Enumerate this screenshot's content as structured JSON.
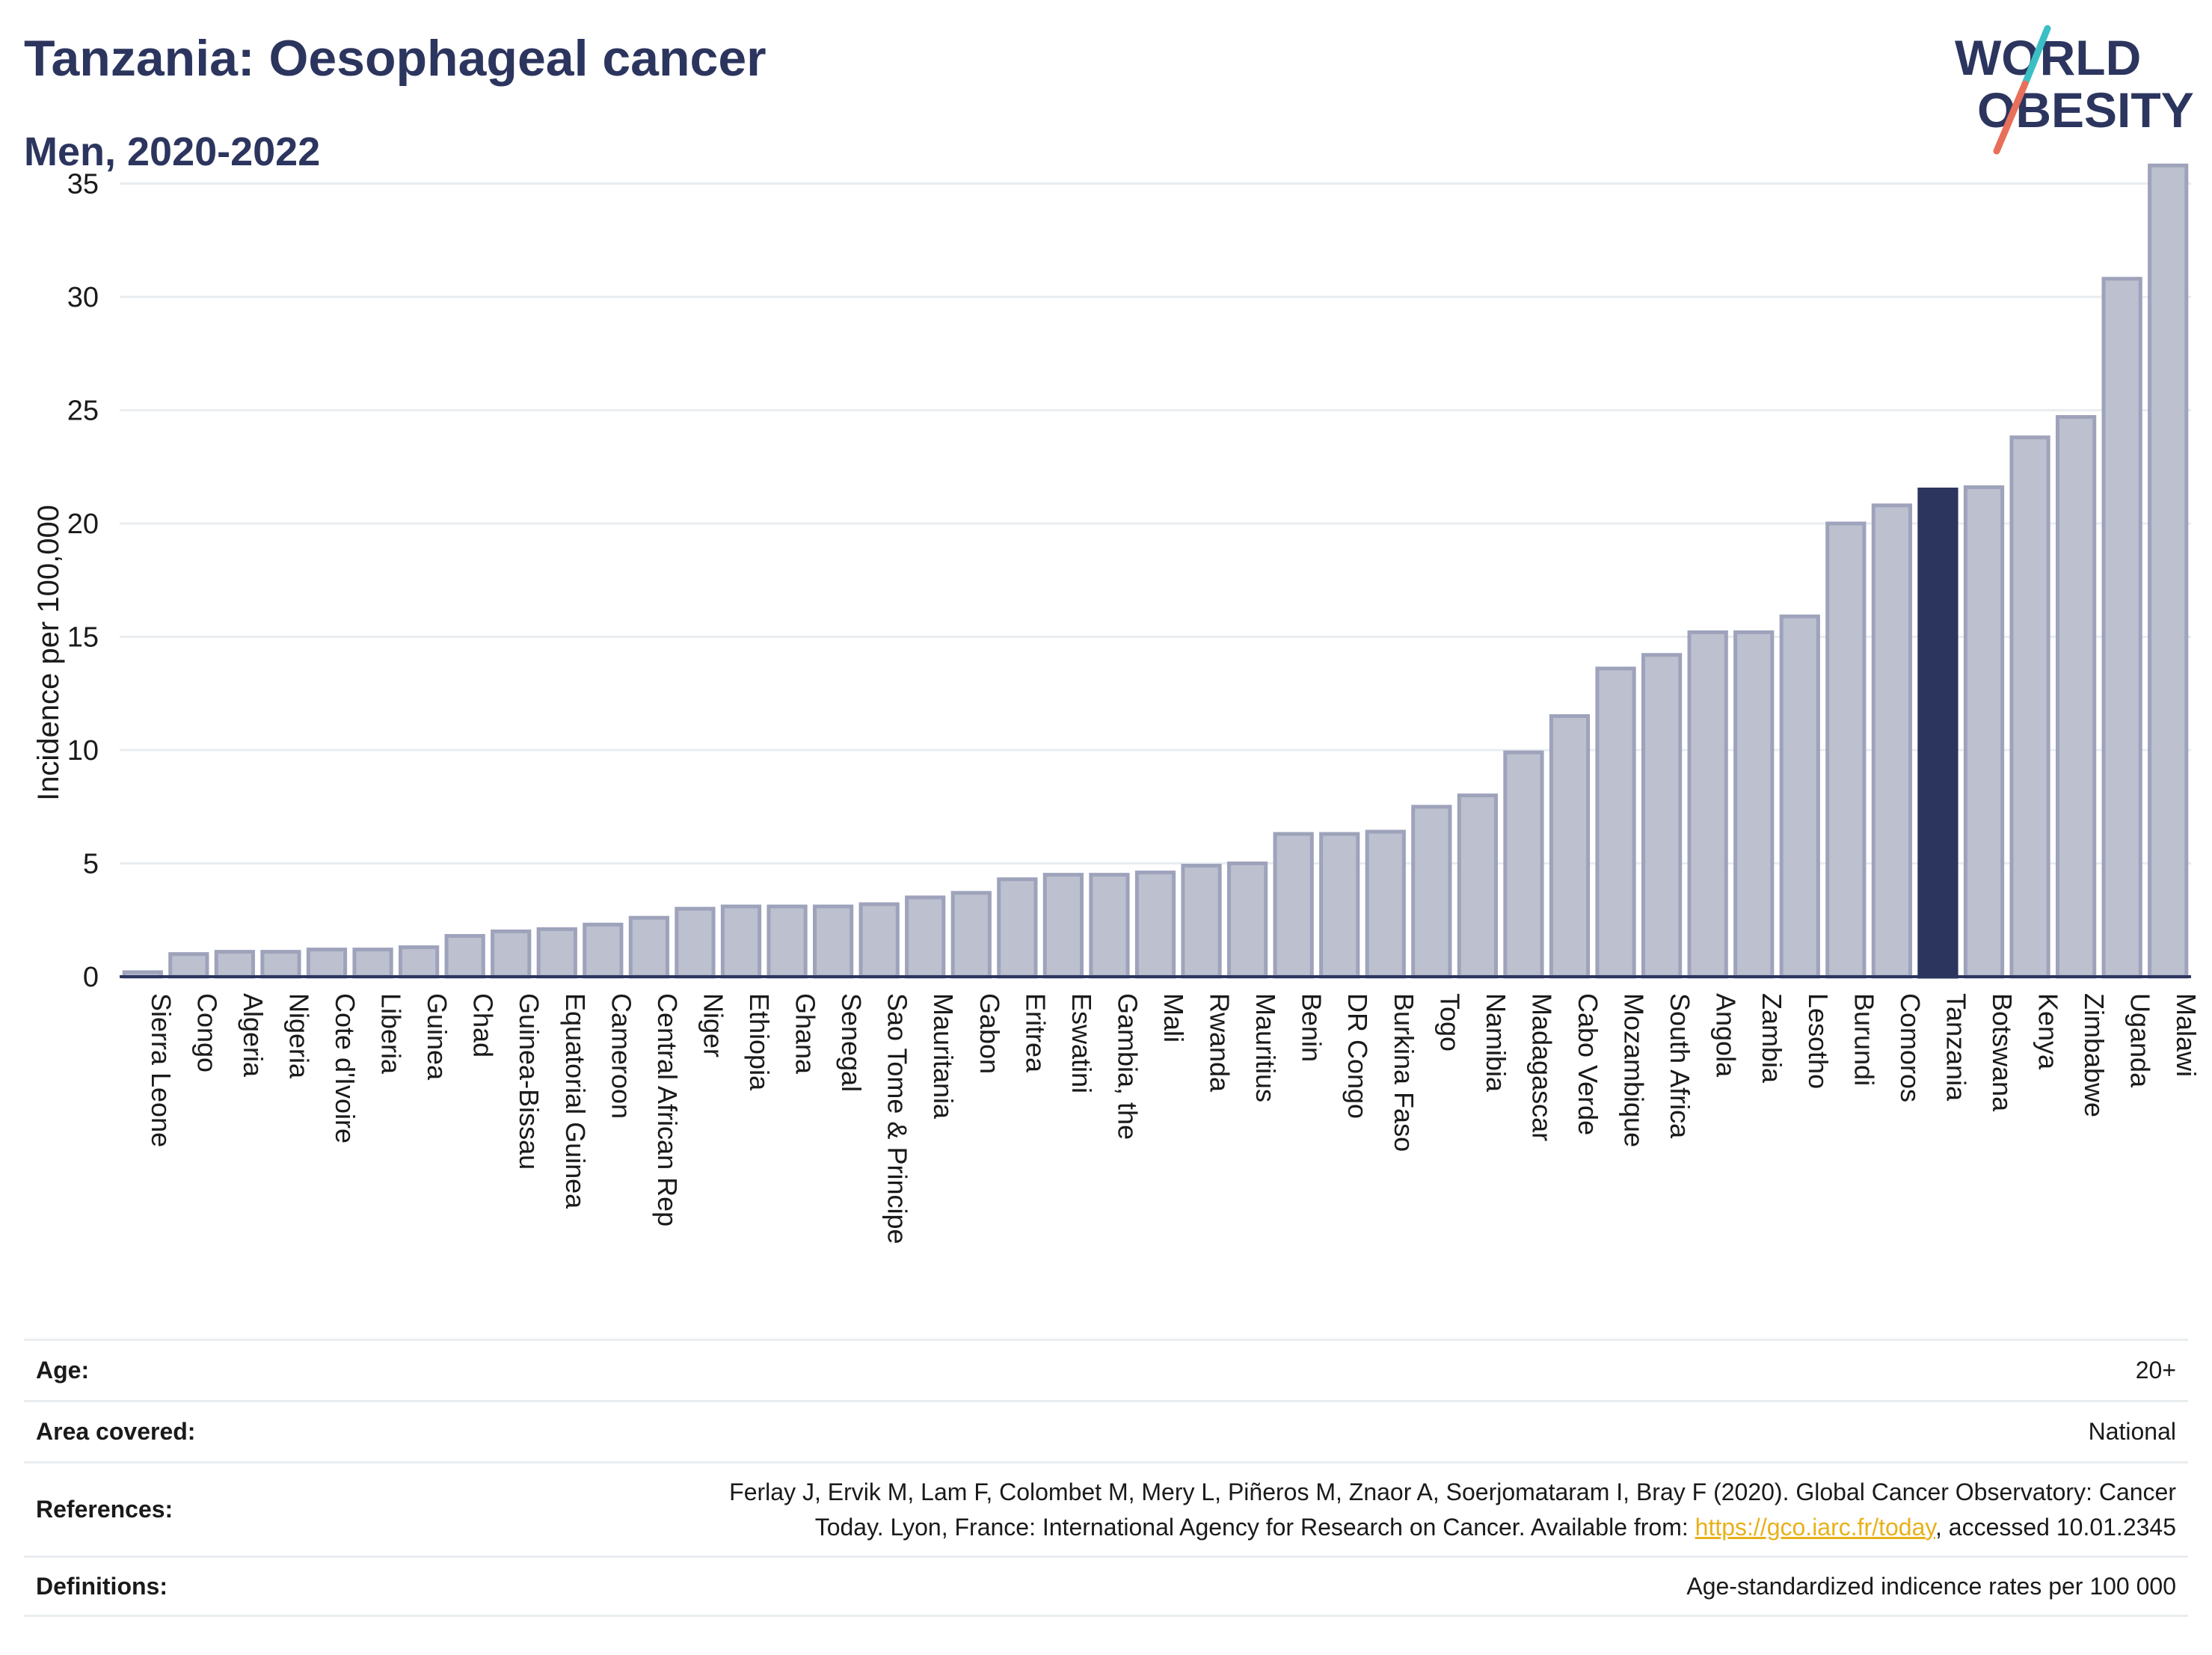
{
  "header": {
    "title": "Tanzania: Oesophageal cancer",
    "subtitle": "Men, 2020-2022"
  },
  "logo": {
    "line1": "WORLD",
    "line2": "OBESITY",
    "text_color": "#2c355e",
    "slash_color_top": "#3cbfc4",
    "slash_color_bottom": "#e8705a"
  },
  "chart_data": {
    "type": "bar",
    "title": "Tanzania: Oesophageal cancer",
    "subtitle": "Men, 2020-2022",
    "xlabel": "",
    "ylabel": "Incidence per 100,000",
    "ylim": [
      0,
      36.5
    ],
    "yticks": [
      0,
      5,
      10,
      15,
      20,
      25,
      30,
      35
    ],
    "grid": true,
    "highlight": "Tanzania",
    "colors": {
      "bar_fill": "#bcc0cf",
      "bar_stroke": "#9ea3bb",
      "highlight": "#2c355e",
      "axis": "#2c355e",
      "grid": "#e9edf0"
    },
    "categories": [
      "Sierra Leone",
      "Congo",
      "Algeria",
      "Nigeria",
      "Cote d'Ivoire",
      "Liberia",
      "Guinea",
      "Chad",
      "Guinea-Bissau",
      "Equatorial Guinea",
      "Cameroon",
      "Central African Rep",
      "Niger",
      "Ethiopia",
      "Ghana",
      "Senegal",
      "Sao Tome & Principe",
      "Mauritania",
      "Gabon",
      "Eritrea",
      "Eswatini",
      "Gambia, the",
      "Mali",
      "Rwanda",
      "Mauritius",
      "Benin",
      "DR Congo",
      "Burkina Faso",
      "Togo",
      "Namibia",
      "Madagascar",
      "Cabo Verde",
      "Mozambique",
      "South Africa",
      "Angola",
      "Zambia",
      "Lesotho",
      "Burundi",
      "Comoros",
      "Tanzania",
      "Botswana",
      "Kenya",
      "Zimbabwe",
      "Uganda",
      "Malawi"
    ],
    "values": [
      0.2,
      1.0,
      1.1,
      1.1,
      1.2,
      1.2,
      1.3,
      1.8,
      2.0,
      2.1,
      2.3,
      2.6,
      3.0,
      3.1,
      3.1,
      3.1,
      3.2,
      3.5,
      3.7,
      4.3,
      4.5,
      4.5,
      4.6,
      4.9,
      5.0,
      6.3,
      6.3,
      6.4,
      7.5,
      8.0,
      9.9,
      11.5,
      13.6,
      14.2,
      15.2,
      15.2,
      15.9,
      20.0,
      20.8,
      21.5,
      21.6,
      23.8,
      24.7,
      30.8,
      35.8
    ]
  },
  "info": {
    "age_label": "Age:",
    "age_value": "20+",
    "area_label": "Area covered:",
    "area_value": "National",
    "references_label": "References:",
    "references_line1": "Ferlay J, Ervik M, Lam F, Colombet M, Mery L, Piñeros M, Znaor A, Soerjomataram I, Bray F (2020). Global Cancer Observatory: Cancer",
    "references_line2_pre": "Today. Lyon, France: International Agency for Research on Cancer. Available from: ",
    "references_link": "https://gco.iarc.fr/today",
    "references_line2_post": ", accessed 10.01.2345",
    "definitions_label": "Definitions:",
    "definitions_value": "Age-standardized indicence rates per 100 000"
  }
}
